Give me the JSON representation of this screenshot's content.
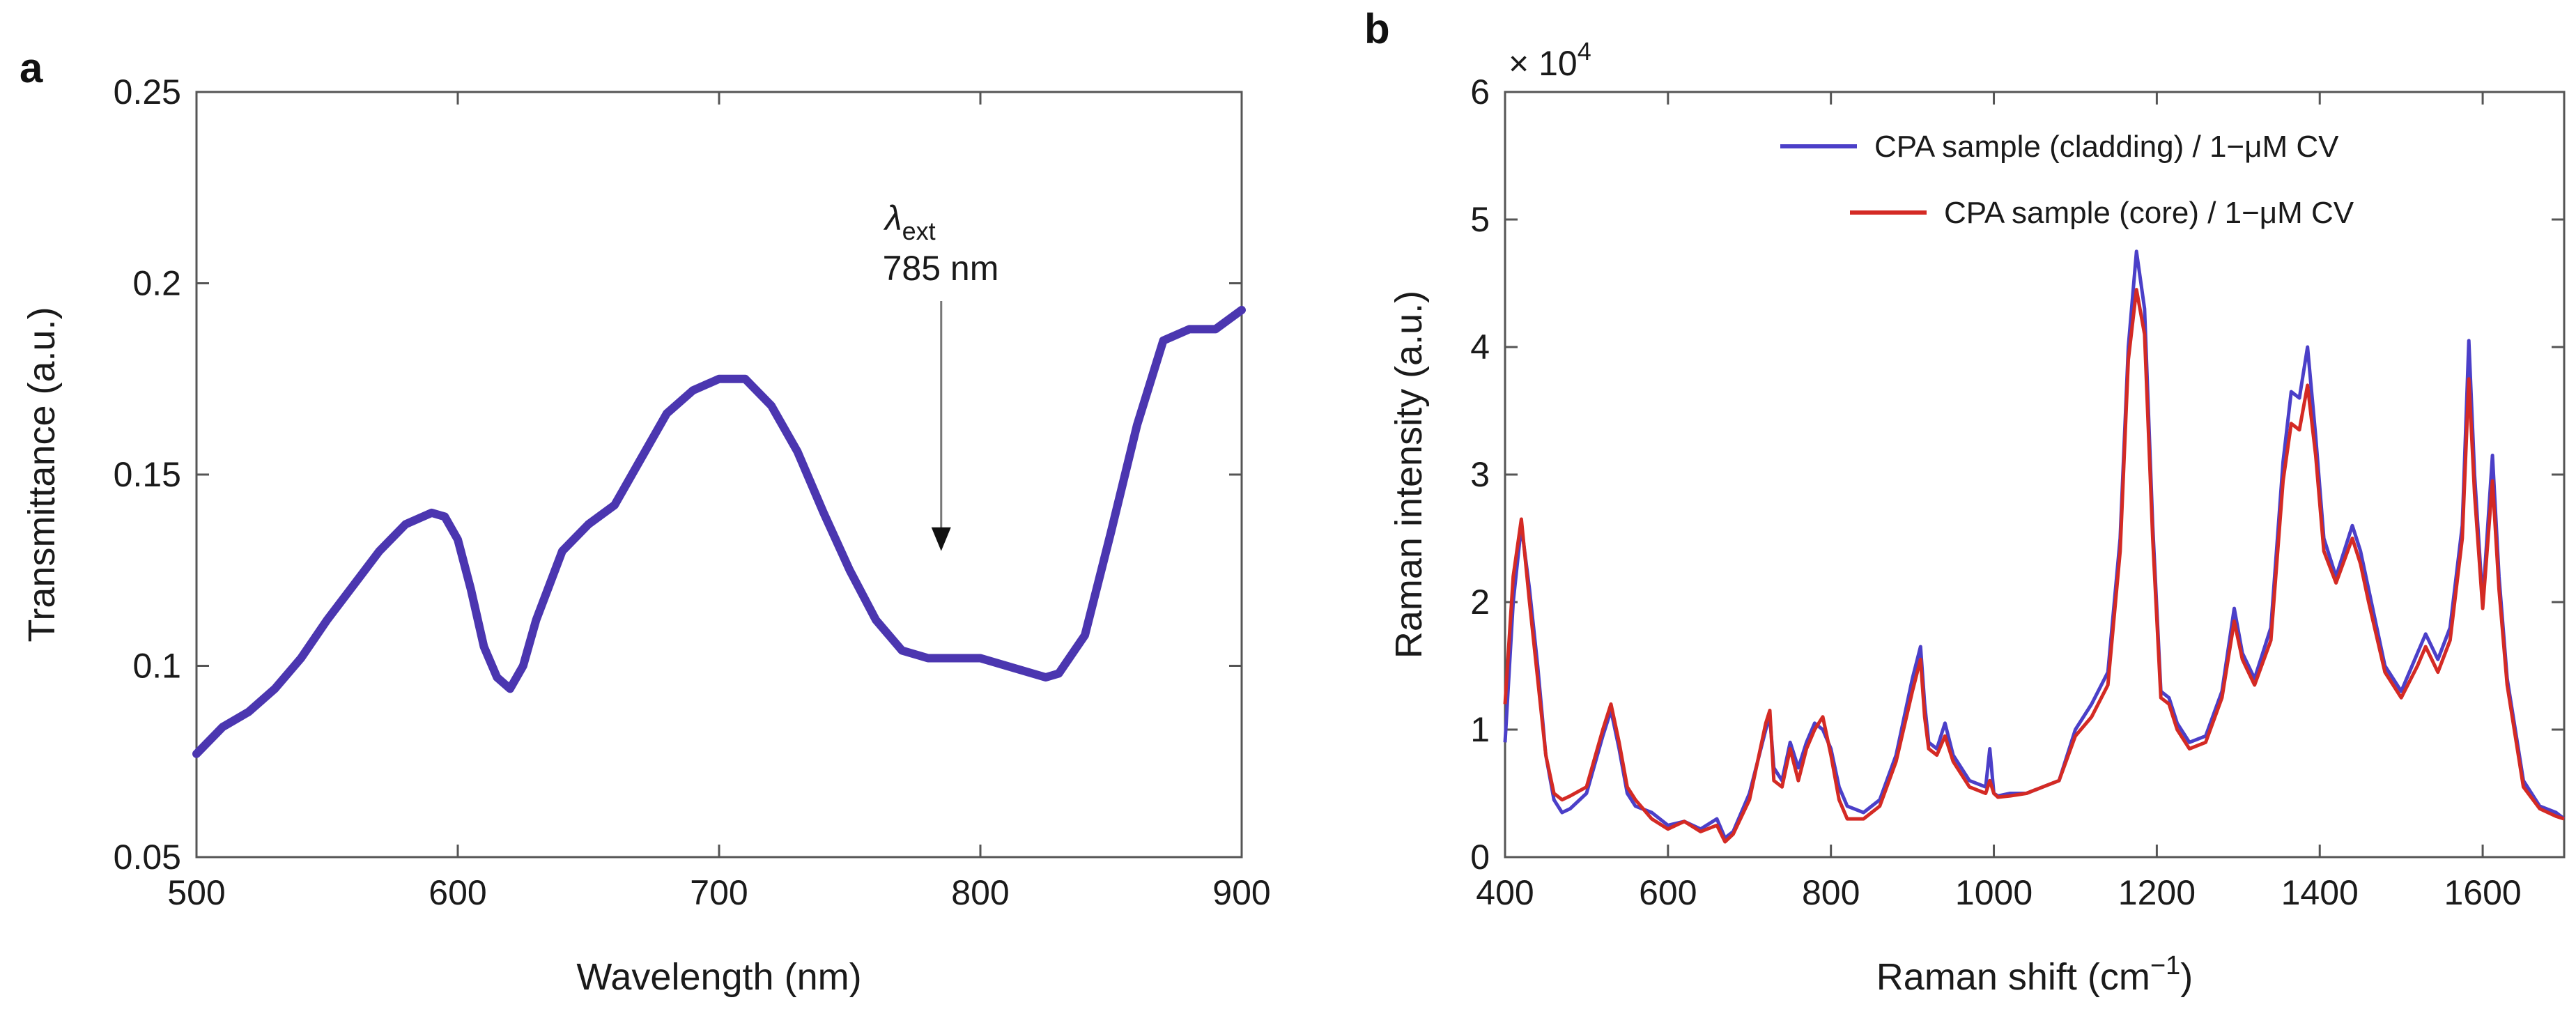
{
  "figure": {
    "panel_a_letter": "a",
    "panel_b_letter": "b"
  },
  "chart_data": [
    {
      "type": "line",
      "id": "a",
      "title": "",
      "xlabel": "Wavelength (nm)",
      "ylabel": "Transmittance (a.u.)",
      "xlim": [
        500,
        900
      ],
      "ylim": [
        0.05,
        0.25
      ],
      "xticks": [
        500,
        600,
        700,
        800,
        900
      ],
      "xtick_labels": [
        "500",
        "600",
        "700",
        "800",
        "900"
      ],
      "yticks": [
        0.05,
        0.1,
        0.15,
        0.2,
        0.25
      ],
      "ytick_labels": [
        "0.05",
        "0.1",
        "0.15",
        "0.2",
        "0.25"
      ],
      "grid": false,
      "annotation": {
        "symbol": "λ",
        "subscript": "ext",
        "text": "785 nm",
        "x": 785,
        "arrow_tip_y": 0.13
      },
      "series": [
        {
          "name": "Transmittance",
          "color": "#4b36b0",
          "x": [
            500,
            510,
            520,
            530,
            540,
            550,
            560,
            570,
            580,
            590,
            595,
            600,
            605,
            610,
            615,
            620,
            625,
            630,
            640,
            650,
            660,
            670,
            680,
            690,
            700,
            710,
            720,
            730,
            740,
            750,
            760,
            770,
            780,
            790,
            800,
            810,
            820,
            825,
            830,
            840,
            850,
            860,
            870,
            880,
            890,
            900
          ],
          "y": [
            0.077,
            0.084,
            0.088,
            0.094,
            0.102,
            0.112,
            0.121,
            0.13,
            0.137,
            0.14,
            0.139,
            0.133,
            0.12,
            0.105,
            0.097,
            0.094,
            0.1,
            0.112,
            0.13,
            0.137,
            0.142,
            0.154,
            0.166,
            0.172,
            0.175,
            0.175,
            0.168,
            0.156,
            0.14,
            0.125,
            0.112,
            0.104,
            0.102,
            0.102,
            0.102,
            0.1,
            0.098,
            0.097,
            0.098,
            0.108,
            0.135,
            0.163,
            0.185,
            0.188,
            0.188,
            0.193
          ]
        }
      ]
    },
    {
      "type": "line",
      "id": "b",
      "title": "",
      "xlabel": "Raman shift (cm",
      "xlabel_sup": "−1",
      "xlabel_close": ")",
      "ylabel": "Raman intensity (a.u.)",
      "y_multiplier": "× 10",
      "y_multiplier_exp": "4",
      "xlim": [
        400,
        1700
      ],
      "ylim": [
        0,
        6
      ],
      "xticks": [
        400,
        600,
        800,
        1000,
        1200,
        1400,
        1600
      ],
      "xtick_labels": [
        "400",
        "600",
        "800",
        "1000",
        "1200",
        "1400",
        "1600"
      ],
      "yticks": [
        0,
        1,
        2,
        3,
        4,
        5,
        6
      ],
      "ytick_labels": [
        "0",
        "1",
        "2",
        "3",
        "4",
        "5",
        "6"
      ],
      "grid": false,
      "legend_position": "top-right",
      "series": [
        {
          "name": "CPA sample (cladding) / 1−μM CV",
          "color": "#4b3fc8",
          "x": [
            400,
            410,
            420,
            430,
            440,
            450,
            460,
            470,
            480,
            500,
            520,
            530,
            540,
            550,
            560,
            580,
            600,
            620,
            640,
            660,
            670,
            680,
            700,
            720,
            725,
            730,
            740,
            750,
            760,
            770,
            780,
            790,
            800,
            810,
            820,
            840,
            860,
            880,
            900,
            910,
            915,
            920,
            930,
            940,
            950,
            970,
            990,
            995,
            1000,
            1005,
            1020,
            1040,
            1060,
            1080,
            1100,
            1120,
            1140,
            1155,
            1165,
            1175,
            1185,
            1195,
            1205,
            1215,
            1225,
            1240,
            1260,
            1280,
            1295,
            1305,
            1320,
            1340,
            1355,
            1365,
            1375,
            1385,
            1395,
            1405,
            1420,
            1440,
            1450,
            1460,
            1480,
            1500,
            1520,
            1530,
            1545,
            1560,
            1575,
            1583,
            1590,
            1600,
            1612,
            1620,
            1630,
            1650,
            1670,
            1690,
            1700
          ],
          "y": [
            0.9,
            2.0,
            2.6,
            2.1,
            1.5,
            0.8,
            0.45,
            0.35,
            0.38,
            0.5,
            0.95,
            1.15,
            0.85,
            0.5,
            0.4,
            0.35,
            0.25,
            0.28,
            0.22,
            0.3,
            0.15,
            0.2,
            0.5,
            1.0,
            1.1,
            0.7,
            0.6,
            0.9,
            0.7,
            0.9,
            1.05,
            1.0,
            0.85,
            0.55,
            0.4,
            0.35,
            0.45,
            0.8,
            1.4,
            1.65,
            1.2,
            0.9,
            0.85,
            1.05,
            0.8,
            0.6,
            0.55,
            0.85,
            0.5,
            0.48,
            0.5,
            0.5,
            0.55,
            0.6,
            1.0,
            1.2,
            1.45,
            2.5,
            4.0,
            4.75,
            4.3,
            2.6,
            1.3,
            1.25,
            1.05,
            0.9,
            0.95,
            1.3,
            1.95,
            1.6,
            1.4,
            1.8,
            3.1,
            3.65,
            3.6,
            4.0,
            3.3,
            2.5,
            2.2,
            2.6,
            2.4,
            2.1,
            1.5,
            1.3,
            1.6,
            1.75,
            1.55,
            1.8,
            2.6,
            4.05,
            3.0,
            2.0,
            3.15,
            2.2,
            1.4,
            0.6,
            0.4,
            0.35,
            0.3
          ]
        },
        {
          "name": "CPA sample (core) / 1−μM CV",
          "color": "#d42a24",
          "x": [
            400,
            410,
            420,
            430,
            440,
            450,
            460,
            470,
            480,
            500,
            520,
            530,
            540,
            550,
            560,
            580,
            600,
            620,
            640,
            660,
            670,
            680,
            700,
            720,
            725,
            730,
            740,
            750,
            760,
            770,
            780,
            790,
            800,
            810,
            820,
            840,
            860,
            880,
            900,
            910,
            915,
            920,
            930,
            940,
            950,
            970,
            990,
            995,
            1000,
            1005,
            1020,
            1040,
            1060,
            1080,
            1100,
            1120,
            1140,
            1155,
            1165,
            1175,
            1185,
            1195,
            1205,
            1215,
            1225,
            1240,
            1260,
            1280,
            1295,
            1305,
            1320,
            1340,
            1355,
            1365,
            1375,
            1385,
            1395,
            1405,
            1420,
            1440,
            1450,
            1460,
            1480,
            1500,
            1520,
            1530,
            1545,
            1560,
            1575,
            1583,
            1590,
            1600,
            1612,
            1620,
            1630,
            1650,
            1670,
            1690,
            1700
          ],
          "y": [
            1.2,
            2.2,
            2.65,
            2.0,
            1.4,
            0.8,
            0.5,
            0.45,
            0.48,
            0.55,
            1.0,
            1.2,
            0.9,
            0.55,
            0.45,
            0.3,
            0.22,
            0.28,
            0.2,
            0.25,
            0.12,
            0.18,
            0.45,
            1.05,
            1.15,
            0.6,
            0.55,
            0.85,
            0.6,
            0.85,
            1.0,
            1.1,
            0.8,
            0.45,
            0.3,
            0.3,
            0.4,
            0.75,
            1.3,
            1.55,
            1.1,
            0.85,
            0.8,
            0.95,
            0.75,
            0.55,
            0.5,
            0.6,
            0.5,
            0.47,
            0.48,
            0.5,
            0.55,
            0.6,
            0.95,
            1.1,
            1.35,
            2.4,
            3.9,
            4.45,
            4.1,
            2.5,
            1.25,
            1.2,
            1.0,
            0.85,
            0.9,
            1.25,
            1.85,
            1.55,
            1.35,
            1.7,
            2.95,
            3.4,
            3.35,
            3.7,
            3.15,
            2.4,
            2.15,
            2.5,
            2.3,
            2.0,
            1.45,
            1.25,
            1.5,
            1.65,
            1.45,
            1.7,
            2.5,
            3.75,
            2.85,
            1.95,
            2.95,
            2.1,
            1.35,
            0.55,
            0.38,
            0.32,
            0.3
          ]
        }
      ]
    }
  ]
}
